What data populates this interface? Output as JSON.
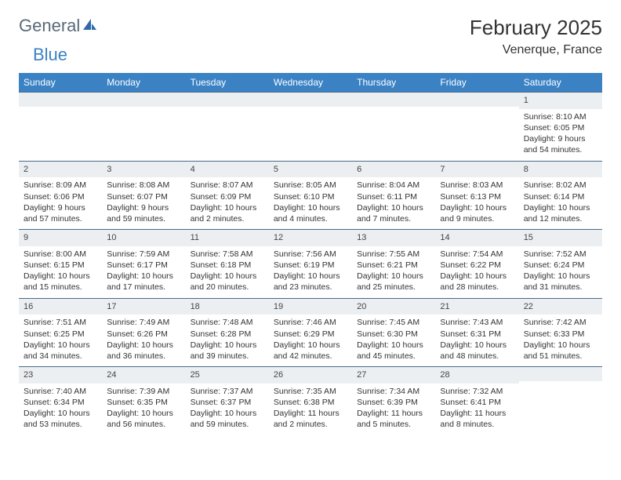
{
  "logo": {
    "text1": "General",
    "text2": "Blue"
  },
  "title": "February 2025",
  "location": "Venerque, France",
  "colors": {
    "header_bg": "#3b82c4",
    "header_text": "#ffffff",
    "daynum_bg": "#eceff1",
    "row_border": "#4a6a8a",
    "body_text": "#333333",
    "background": "#ffffff"
  },
  "weekdays": [
    "Sunday",
    "Monday",
    "Tuesday",
    "Wednesday",
    "Thursday",
    "Friday",
    "Saturday"
  ],
  "weeks": [
    [
      {
        "n": "",
        "lines": []
      },
      {
        "n": "",
        "lines": []
      },
      {
        "n": "",
        "lines": []
      },
      {
        "n": "",
        "lines": []
      },
      {
        "n": "",
        "lines": []
      },
      {
        "n": "",
        "lines": []
      },
      {
        "n": "1",
        "lines": [
          "Sunrise: 8:10 AM",
          "Sunset: 6:05 PM",
          "Daylight: 9 hours and 54 minutes."
        ]
      }
    ],
    [
      {
        "n": "2",
        "lines": [
          "Sunrise: 8:09 AM",
          "Sunset: 6:06 PM",
          "Daylight: 9 hours and 57 minutes."
        ]
      },
      {
        "n": "3",
        "lines": [
          "Sunrise: 8:08 AM",
          "Sunset: 6:07 PM",
          "Daylight: 9 hours and 59 minutes."
        ]
      },
      {
        "n": "4",
        "lines": [
          "Sunrise: 8:07 AM",
          "Sunset: 6:09 PM",
          "Daylight: 10 hours and 2 minutes."
        ]
      },
      {
        "n": "5",
        "lines": [
          "Sunrise: 8:05 AM",
          "Sunset: 6:10 PM",
          "Daylight: 10 hours and 4 minutes."
        ]
      },
      {
        "n": "6",
        "lines": [
          "Sunrise: 8:04 AM",
          "Sunset: 6:11 PM",
          "Daylight: 10 hours and 7 minutes."
        ]
      },
      {
        "n": "7",
        "lines": [
          "Sunrise: 8:03 AM",
          "Sunset: 6:13 PM",
          "Daylight: 10 hours and 9 minutes."
        ]
      },
      {
        "n": "8",
        "lines": [
          "Sunrise: 8:02 AM",
          "Sunset: 6:14 PM",
          "Daylight: 10 hours and 12 minutes."
        ]
      }
    ],
    [
      {
        "n": "9",
        "lines": [
          "Sunrise: 8:00 AM",
          "Sunset: 6:15 PM",
          "Daylight: 10 hours and 15 minutes."
        ]
      },
      {
        "n": "10",
        "lines": [
          "Sunrise: 7:59 AM",
          "Sunset: 6:17 PM",
          "Daylight: 10 hours and 17 minutes."
        ]
      },
      {
        "n": "11",
        "lines": [
          "Sunrise: 7:58 AM",
          "Sunset: 6:18 PM",
          "Daylight: 10 hours and 20 minutes."
        ]
      },
      {
        "n": "12",
        "lines": [
          "Sunrise: 7:56 AM",
          "Sunset: 6:19 PM",
          "Daylight: 10 hours and 23 minutes."
        ]
      },
      {
        "n": "13",
        "lines": [
          "Sunrise: 7:55 AM",
          "Sunset: 6:21 PM",
          "Daylight: 10 hours and 25 minutes."
        ]
      },
      {
        "n": "14",
        "lines": [
          "Sunrise: 7:54 AM",
          "Sunset: 6:22 PM",
          "Daylight: 10 hours and 28 minutes."
        ]
      },
      {
        "n": "15",
        "lines": [
          "Sunrise: 7:52 AM",
          "Sunset: 6:24 PM",
          "Daylight: 10 hours and 31 minutes."
        ]
      }
    ],
    [
      {
        "n": "16",
        "lines": [
          "Sunrise: 7:51 AM",
          "Sunset: 6:25 PM",
          "Daylight: 10 hours and 34 minutes."
        ]
      },
      {
        "n": "17",
        "lines": [
          "Sunrise: 7:49 AM",
          "Sunset: 6:26 PM",
          "Daylight: 10 hours and 36 minutes."
        ]
      },
      {
        "n": "18",
        "lines": [
          "Sunrise: 7:48 AM",
          "Sunset: 6:28 PM",
          "Daylight: 10 hours and 39 minutes."
        ]
      },
      {
        "n": "19",
        "lines": [
          "Sunrise: 7:46 AM",
          "Sunset: 6:29 PM",
          "Daylight: 10 hours and 42 minutes."
        ]
      },
      {
        "n": "20",
        "lines": [
          "Sunrise: 7:45 AM",
          "Sunset: 6:30 PM",
          "Daylight: 10 hours and 45 minutes."
        ]
      },
      {
        "n": "21",
        "lines": [
          "Sunrise: 7:43 AM",
          "Sunset: 6:31 PM",
          "Daylight: 10 hours and 48 minutes."
        ]
      },
      {
        "n": "22",
        "lines": [
          "Sunrise: 7:42 AM",
          "Sunset: 6:33 PM",
          "Daylight: 10 hours and 51 minutes."
        ]
      }
    ],
    [
      {
        "n": "23",
        "lines": [
          "Sunrise: 7:40 AM",
          "Sunset: 6:34 PM",
          "Daylight: 10 hours and 53 minutes."
        ]
      },
      {
        "n": "24",
        "lines": [
          "Sunrise: 7:39 AM",
          "Sunset: 6:35 PM",
          "Daylight: 10 hours and 56 minutes."
        ]
      },
      {
        "n": "25",
        "lines": [
          "Sunrise: 7:37 AM",
          "Sunset: 6:37 PM",
          "Daylight: 10 hours and 59 minutes."
        ]
      },
      {
        "n": "26",
        "lines": [
          "Sunrise: 7:35 AM",
          "Sunset: 6:38 PM",
          "Daylight: 11 hours and 2 minutes."
        ]
      },
      {
        "n": "27",
        "lines": [
          "Sunrise: 7:34 AM",
          "Sunset: 6:39 PM",
          "Daylight: 11 hours and 5 minutes."
        ]
      },
      {
        "n": "28",
        "lines": [
          "Sunrise: 7:32 AM",
          "Sunset: 6:41 PM",
          "Daylight: 11 hours and 8 minutes."
        ]
      },
      {
        "n": "",
        "lines": []
      }
    ]
  ]
}
